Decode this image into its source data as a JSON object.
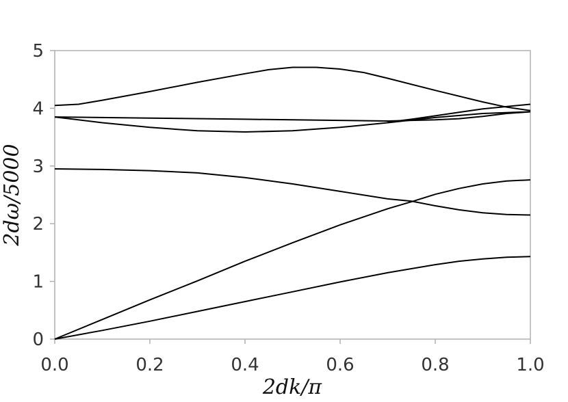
{
  "chart_data": {
    "type": "line",
    "title": "",
    "xlabel": "2dk/π",
    "ylabel": "2dω/5000",
    "xlim": [
      0.0,
      1.0
    ],
    "ylim": [
      0,
      5
    ],
    "xticks": [
      0.0,
      0.2,
      0.4,
      0.6,
      0.8,
      1.0
    ],
    "xtick_labels": [
      "0.0",
      "0.2",
      "0.4",
      "0.6",
      "0.8",
      "1.0"
    ],
    "yticks": [
      0,
      1,
      2,
      3,
      4,
      5
    ],
    "ytick_labels": [
      "0",
      "1",
      "2",
      "3",
      "4",
      "5"
    ],
    "grid": false,
    "legend": "none",
    "line_color": "#000000",
    "series": [
      {
        "points": [
          [
            0.0,
            0.0
          ],
          [
            0.1,
            0.15
          ],
          [
            0.2,
            0.31
          ],
          [
            0.3,
            0.48
          ],
          [
            0.4,
            0.65
          ],
          [
            0.5,
            0.82
          ],
          [
            0.6,
            0.99
          ],
          [
            0.7,
            1.15
          ],
          [
            0.8,
            1.29
          ],
          [
            0.85,
            1.35
          ],
          [
            0.9,
            1.39
          ],
          [
            0.95,
            1.42
          ],
          [
            1.0,
            1.43
          ]
        ]
      },
      {
        "points": [
          [
            0.0,
            0.0
          ],
          [
            0.1,
            0.34
          ],
          [
            0.2,
            0.68
          ],
          [
            0.3,
            1.01
          ],
          [
            0.4,
            1.35
          ],
          [
            0.5,
            1.67
          ],
          [
            0.6,
            1.98
          ],
          [
            0.7,
            2.26
          ],
          [
            0.75,
            2.38
          ],
          [
            0.8,
            2.51
          ],
          [
            0.85,
            2.61
          ],
          [
            0.9,
            2.69
          ],
          [
            0.95,
            2.74
          ],
          [
            1.0,
            2.76
          ]
        ]
      },
      {
        "points": [
          [
            0.0,
            2.95
          ],
          [
            0.1,
            2.94
          ],
          [
            0.2,
            2.92
          ],
          [
            0.3,
            2.88
          ],
          [
            0.4,
            2.8
          ],
          [
            0.5,
            2.69
          ],
          [
            0.6,
            2.56
          ],
          [
            0.7,
            2.43
          ],
          [
            0.75,
            2.39
          ],
          [
            0.8,
            2.31
          ],
          [
            0.85,
            2.24
          ],
          [
            0.9,
            2.19
          ],
          [
            0.95,
            2.16
          ],
          [
            1.0,
            2.15
          ]
        ]
      },
      {
        "points": [
          [
            0.0,
            3.85
          ],
          [
            0.1,
            3.75
          ],
          [
            0.2,
            3.67
          ],
          [
            0.3,
            3.61
          ],
          [
            0.4,
            3.59
          ],
          [
            0.5,
            3.61
          ],
          [
            0.6,
            3.67
          ],
          [
            0.7,
            3.75
          ],
          [
            0.8,
            3.84
          ],
          [
            0.9,
            3.91
          ],
          [
            1.0,
            3.94
          ]
        ]
      },
      {
        "points": [
          [
            0.0,
            3.85
          ],
          [
            0.2,
            3.83
          ],
          [
            0.4,
            3.81
          ],
          [
            0.6,
            3.79
          ],
          [
            0.7,
            3.78
          ],
          [
            0.8,
            3.8
          ],
          [
            0.85,
            3.82
          ],
          [
            0.9,
            3.86
          ],
          [
            0.95,
            3.91
          ],
          [
            1.0,
            3.94
          ]
        ]
      },
      {
        "points": [
          [
            0.0,
            4.05
          ],
          [
            0.05,
            4.07
          ],
          [
            0.1,
            4.14
          ],
          [
            0.2,
            4.29
          ],
          [
            0.3,
            4.45
          ],
          [
            0.4,
            4.6
          ],
          [
            0.45,
            4.67
          ],
          [
            0.5,
            4.71
          ],
          [
            0.55,
            4.71
          ],
          [
            0.6,
            4.68
          ],
          [
            0.65,
            4.62
          ],
          [
            0.7,
            4.52
          ],
          [
            0.8,
            4.31
          ],
          [
            0.9,
            4.11
          ],
          [
            0.95,
            4.02
          ],
          [
            1.0,
            3.96
          ]
        ]
      },
      {
        "points": [
          [
            0.7,
            3.76
          ],
          [
            0.75,
            3.81
          ],
          [
            0.8,
            3.87
          ],
          [
            0.85,
            3.93
          ],
          [
            0.9,
            3.99
          ],
          [
            0.95,
            4.03
          ],
          [
            1.0,
            4.07
          ]
        ]
      }
    ]
  }
}
